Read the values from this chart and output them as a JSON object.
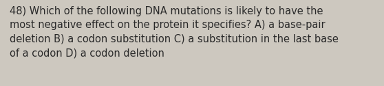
{
  "lines": [
    "48) Which of the following DNA mutations is likely to have the",
    "most negative effect on the protein it specifies? A) a base-pair",
    "deletion B) a codon substitution C) a substitution in the last base",
    "of a codon D) a codon deletion"
  ],
  "background_color": "#cdc8bf",
  "text_color": "#2a2a2a",
  "font_size": 10.5,
  "fig_width": 5.58,
  "fig_height": 1.26,
  "dpi": 100
}
